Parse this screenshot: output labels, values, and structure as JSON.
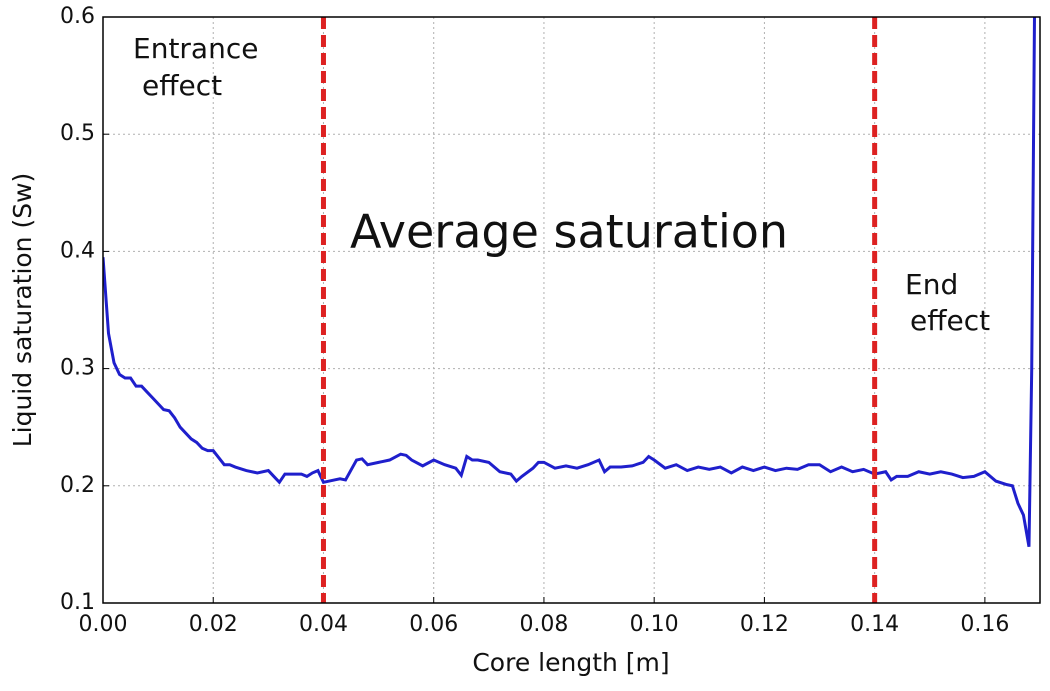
{
  "chart_data": {
    "type": "line",
    "xlabel": "Core length [m]",
    "ylabel": "Liquid saturation (Sw)",
    "x": [
      0.0,
      0.001,
      0.002,
      0.003,
      0.004,
      0.005,
      0.006,
      0.007,
      0.008,
      0.009,
      0.01,
      0.011,
      0.012,
      0.013,
      0.014,
      0.015,
      0.016,
      0.017,
      0.018,
      0.019,
      0.02,
      0.021,
      0.022,
      0.023,
      0.024,
      0.026,
      0.028,
      0.03,
      0.031,
      0.032,
      0.033,
      0.034,
      0.036,
      0.037,
      0.038,
      0.039,
      0.04,
      0.042,
      0.043,
      0.044,
      0.046,
      0.047,
      0.048,
      0.05,
      0.052,
      0.054,
      0.055,
      0.056,
      0.058,
      0.06,
      0.062,
      0.064,
      0.065,
      0.066,
      0.067,
      0.068,
      0.07,
      0.072,
      0.074,
      0.075,
      0.076,
      0.078,
      0.079,
      0.08,
      0.082,
      0.084,
      0.086,
      0.088,
      0.09,
      0.091,
      0.092,
      0.094,
      0.096,
      0.098,
      0.099,
      0.1,
      0.102,
      0.104,
      0.106,
      0.108,
      0.11,
      0.112,
      0.114,
      0.116,
      0.118,
      0.12,
      0.122,
      0.124,
      0.126,
      0.128,
      0.13,
      0.132,
      0.134,
      0.136,
      0.138,
      0.14,
      0.142,
      0.143,
      0.144,
      0.146,
      0.148,
      0.15,
      0.152,
      0.154,
      0.156,
      0.158,
      0.16,
      0.162,
      0.164,
      0.165,
      0.166,
      0.167,
      0.168,
      0.1685,
      0.169
    ],
    "series": [
      {
        "color": "#1f1fcc",
        "values": [
          0.395,
          0.33,
          0.305,
          0.295,
          0.292,
          0.292,
          0.285,
          0.285,
          0.28,
          0.275,
          0.27,
          0.265,
          0.264,
          0.258,
          0.25,
          0.245,
          0.24,
          0.237,
          0.232,
          0.23,
          0.23,
          0.224,
          0.218,
          0.218,
          0.216,
          0.213,
          0.211,
          0.213,
          0.208,
          0.203,
          0.21,
          0.21,
          0.21,
          0.208,
          0.211,
          0.213,
          0.203,
          0.205,
          0.206,
          0.205,
          0.222,
          0.223,
          0.218,
          0.22,
          0.222,
          0.227,
          0.226,
          0.222,
          0.217,
          0.222,
          0.218,
          0.215,
          0.209,
          0.225,
          0.222,
          0.222,
          0.22,
          0.212,
          0.21,
          0.204,
          0.208,
          0.215,
          0.22,
          0.22,
          0.215,
          0.217,
          0.215,
          0.218,
          0.222,
          0.212,
          0.216,
          0.216,
          0.217,
          0.22,
          0.225,
          0.222,
          0.215,
          0.218,
          0.213,
          0.216,
          0.214,
          0.216,
          0.211,
          0.216,
          0.213,
          0.216,
          0.213,
          0.215,
          0.214,
          0.218,
          0.218,
          0.212,
          0.216,
          0.212,
          0.214,
          0.21,
          0.212,
          0.205,
          0.208,
          0.208,
          0.212,
          0.21,
          0.212,
          0.21,
          0.207,
          0.208,
          0.212,
          0.204,
          0.201,
          0.2,
          0.185,
          0.175,
          0.148,
          0.3,
          0.6
        ]
      }
    ],
    "xlim": [
      0,
      0.17
    ],
    "ylim": [
      0.1,
      0.6
    ],
    "xticks": [
      {
        "value": 0,
        "label": "0.00"
      },
      {
        "value": 0.02,
        "label": "0.02"
      },
      {
        "value": 0.04,
        "label": "0.04"
      },
      {
        "value": 0.06,
        "label": "0.06"
      },
      {
        "value": 0.08,
        "label": "0.08"
      },
      {
        "value": 0.1,
        "label": "0.10"
      },
      {
        "value": 0.12,
        "label": "0.12"
      },
      {
        "value": 0.14,
        "label": "0.14"
      },
      {
        "value": 0.16,
        "label": "0.16"
      }
    ],
    "yticks": [
      0.1,
      0.2,
      0.3,
      0.4,
      0.5,
      0.6
    ],
    "grid": true,
    "vlines": {
      "values": [
        0.04,
        0.14
      ],
      "color": "#dd2222"
    },
    "annotations": [
      [
        "Entrance",
        "effect"
      ],
      [
        "Average saturation"
      ],
      [
        "End",
        "effect"
      ]
    ]
  }
}
